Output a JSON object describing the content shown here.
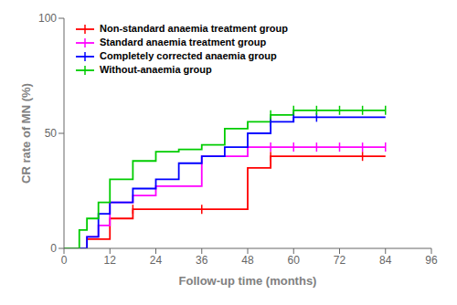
{
  "chart_data": {
    "type": "line",
    "xlabel": "Follow-up time (months)",
    "ylabel": "CR rate of MN (%)",
    "xlim": [
      0,
      96
    ],
    "ylim": [
      0,
      100
    ],
    "xticks": [
      0,
      12,
      24,
      36,
      48,
      60,
      72,
      84,
      96
    ],
    "yticks": [
      0,
      50,
      100
    ],
    "legend": "upper left",
    "series": [
      {
        "name": "Non-standard anaemia treatment group",
        "color": "#FF0000",
        "x": [
          0,
          6,
          6,
          12,
          12,
          18,
          18,
          36,
          36,
          48,
          48,
          54,
          54,
          84,
          84
        ],
        "values": [
          0,
          0,
          4,
          4,
          13,
          13,
          17,
          17,
          17,
          17,
          35,
          35,
          40,
          40,
          40
        ],
        "censor_x": [
          18,
          36,
          54,
          78
        ],
        "censor_y": [
          17,
          17,
          40,
          40
        ]
      },
      {
        "name": "Standard anaemia treatment group",
        "color": "#FF00FF",
        "x": [
          0,
          6,
          6,
          9,
          9,
          12,
          12,
          18,
          18,
          24,
          24,
          36,
          36,
          48,
          48,
          60,
          60,
          72,
          72,
          84,
          84
        ],
        "values": [
          0,
          0,
          5,
          5,
          10,
          10,
          20,
          20,
          23,
          23,
          27,
          27,
          40,
          40,
          44,
          44,
          44,
          44,
          44,
          44,
          44
        ],
        "censor_x": [
          54,
          60,
          66,
          72,
          78,
          84
        ],
        "censor_y": [
          44,
          44,
          44,
          44,
          44,
          44
        ]
      },
      {
        "name": "Completely corrected anaemia group",
        "color": "#0000FF",
        "x": [
          0,
          6,
          6,
          9,
          9,
          12,
          12,
          18,
          18,
          24,
          24,
          30,
          30,
          36,
          36,
          42,
          42,
          48,
          48,
          54,
          54,
          60,
          60,
          72,
          72,
          84,
          84
        ],
        "values": [
          0,
          0,
          5,
          5,
          15,
          15,
          20,
          20,
          26,
          26,
          30,
          30,
          37,
          37,
          40,
          40,
          44,
          44,
          50,
          50,
          55,
          55,
          57,
          57,
          57,
          57,
          57
        ],
        "censor_x": [
          54,
          60,
          66
        ],
        "censor_y": [
          55,
          57,
          57
        ]
      },
      {
        "name": "Without-anaemia group",
        "color": "#00CC00",
        "x": [
          0,
          4,
          4,
          6,
          6,
          9,
          9,
          12,
          12,
          18,
          18,
          24,
          24,
          30,
          30,
          36,
          36,
          42,
          42,
          48,
          48,
          54,
          54,
          60,
          60,
          66,
          66,
          72,
          72,
          78,
          78,
          84,
          84
        ],
        "values": [
          0,
          0,
          8,
          8,
          13,
          13,
          20,
          20,
          30,
          30,
          38,
          38,
          42,
          42,
          43,
          43,
          45,
          45,
          52,
          52,
          55,
          55,
          58,
          58,
          60,
          60,
          60,
          60,
          60,
          60,
          60,
          60,
          60
        ],
        "censor_x": [
          54,
          60,
          66,
          72,
          78,
          84
        ],
        "censor_y": [
          58,
          60,
          60,
          60,
          60,
          60
        ]
      }
    ]
  }
}
